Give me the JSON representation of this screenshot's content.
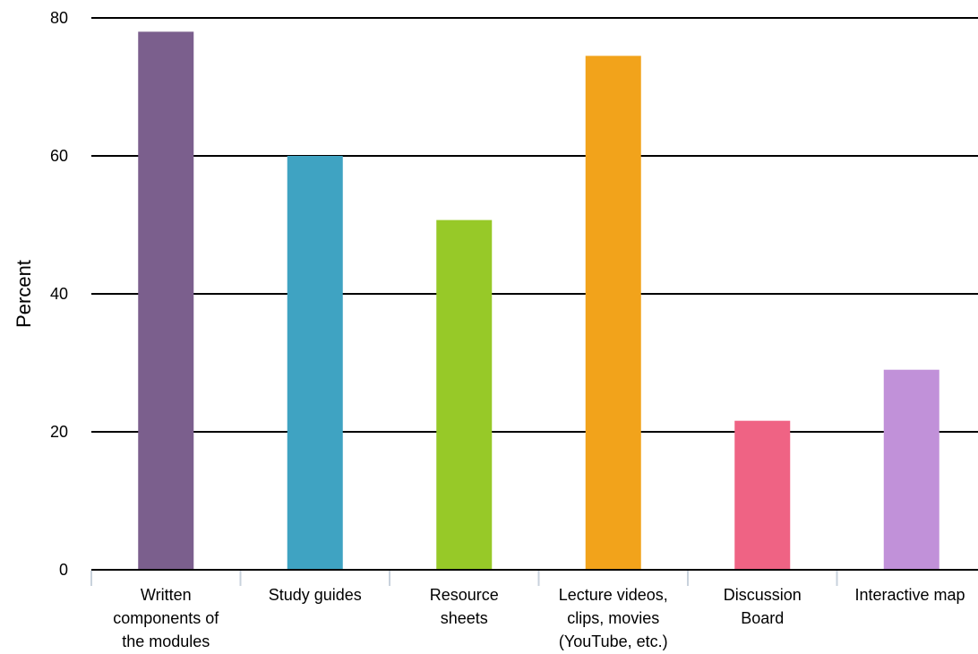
{
  "chart_data": {
    "type": "bar",
    "title": "",
    "xlabel": "",
    "ylabel": "Percent",
    "ylim": [
      0,
      80
    ],
    "yticks": [
      0,
      20,
      40,
      60,
      80
    ],
    "grid": true,
    "legend": "none",
    "categories": [
      [
        "Written",
        "components of",
        "the modules"
      ],
      [
        "Study guides"
      ],
      [
        "Resource",
        "sheets"
      ],
      [
        "Lecture videos,",
        "clips, movies",
        "(YouTube, etc.)"
      ],
      [
        "Discussion",
        "Board"
      ],
      [
        "Interactive map"
      ]
    ],
    "values": [
      78,
      60,
      50.7,
      74.5,
      21.6,
      29
    ],
    "colors": [
      "#7b5f8d",
      "#3fa3c2",
      "#97c928",
      "#f2a31b",
      "#ef6384",
      "#c191d9"
    ]
  }
}
